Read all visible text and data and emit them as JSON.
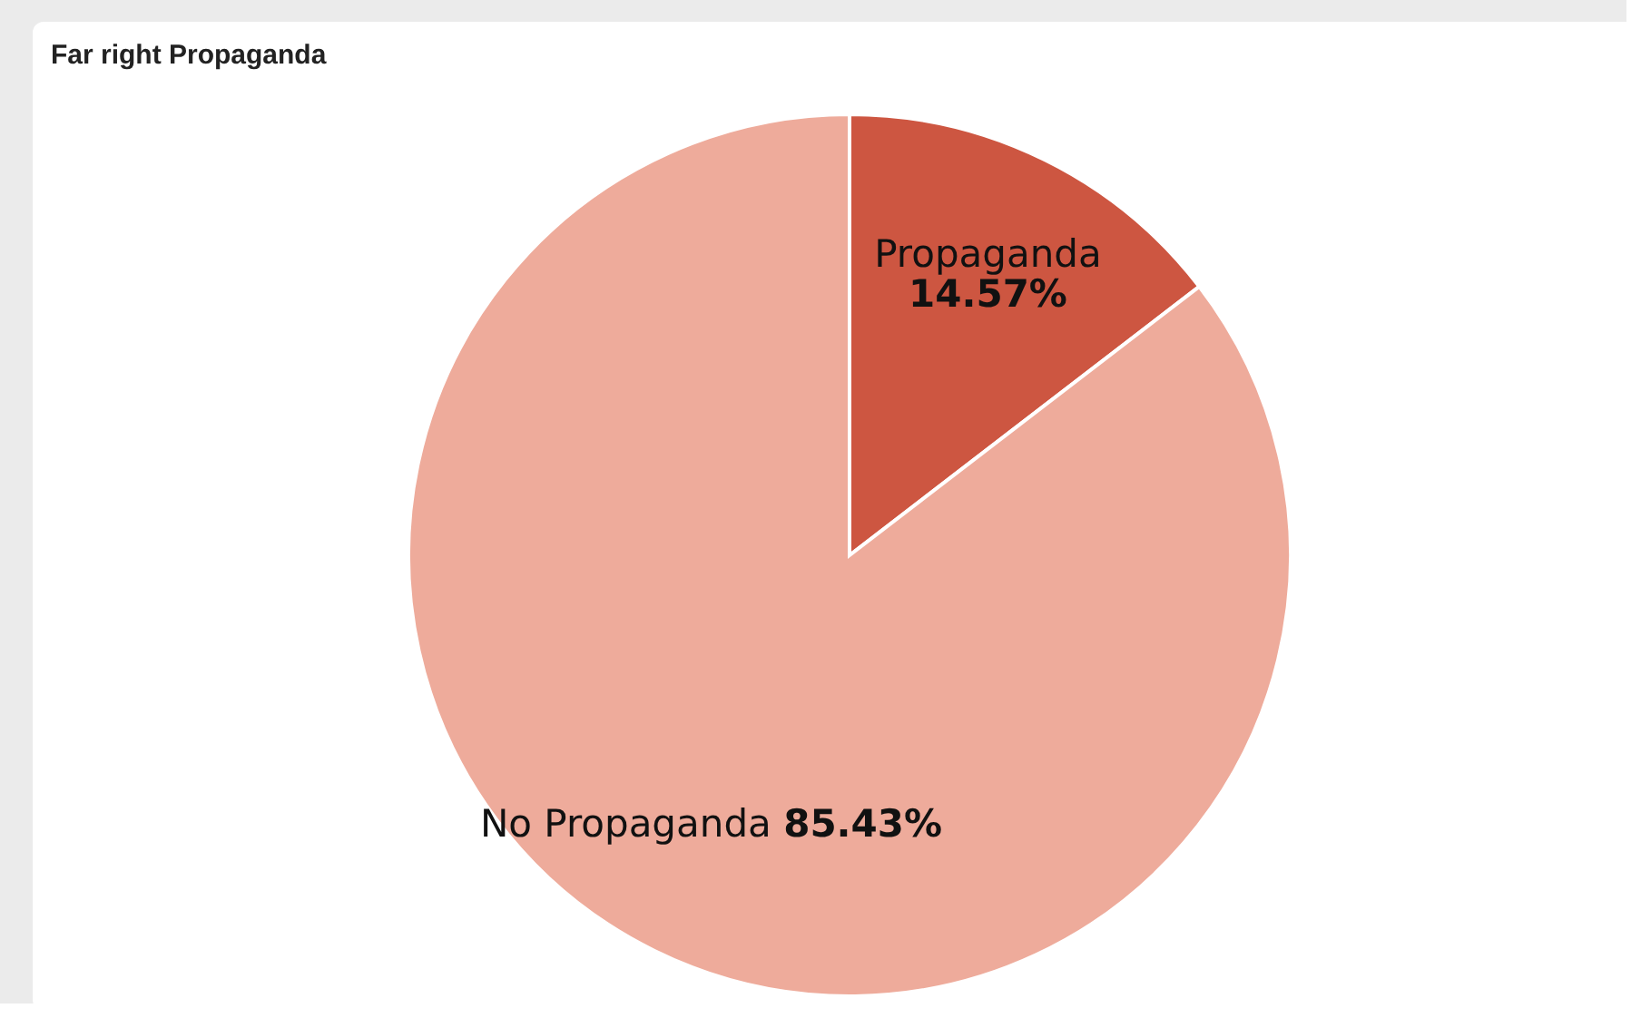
{
  "chart_data": {
    "type": "pie",
    "title": "Far right Propaganda",
    "categories": [
      "Propaganda",
      "No Propaganda"
    ],
    "values": [
      14.57,
      85.43
    ],
    "colors": [
      "#cd5641",
      "#eeab9b"
    ],
    "value_labels": [
      "14.57%",
      "85.43%"
    ],
    "legend": false
  }
}
